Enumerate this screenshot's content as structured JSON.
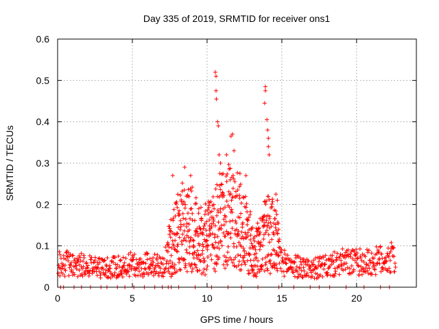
{
  "chart_data": {
    "type": "scatter",
    "title": "Day 335 of 2019, SRMTID for receiver ons1",
    "xlabel": "GPS time / hours",
    "ylabel": "SRMTID / TECUs",
    "xlim": [
      0,
      24
    ],
    "ylim": [
      0,
      0.6
    ],
    "xticks": [
      "0",
      "5",
      "10",
      "15",
      "20"
    ],
    "yticks": [
      "0",
      "0.1",
      "0.2",
      "0.3",
      "0.4",
      "0.5",
      "0.6"
    ],
    "grid": true,
    "marker": "plus",
    "series": [
      {
        "name": "SRMTID",
        "color": "#ff0000",
        "profile": [
          {
            "x": 0.0,
            "y": 0.055
          },
          {
            "x": 1.0,
            "y": 0.06
          },
          {
            "x": 2.0,
            "y": 0.05
          },
          {
            "x": 3.0,
            "y": 0.045
          },
          {
            "x": 4.0,
            "y": 0.05
          },
          {
            "x": 5.0,
            "y": 0.055
          },
          {
            "x": 6.0,
            "y": 0.055
          },
          {
            "x": 7.0,
            "y": 0.05
          },
          {
            "x": 7.5,
            "y": 0.09
          },
          {
            "x": 8.0,
            "y": 0.13
          },
          {
            "x": 8.5,
            "y": 0.15
          },
          {
            "x": 9.0,
            "y": 0.14
          },
          {
            "x": 9.5,
            "y": 0.11
          },
          {
            "x": 10.0,
            "y": 0.12
          },
          {
            "x": 10.5,
            "y": 0.13
          },
          {
            "x": 11.0,
            "y": 0.17
          },
          {
            "x": 11.5,
            "y": 0.18
          },
          {
            "x": 12.0,
            "y": 0.16
          },
          {
            "x": 12.5,
            "y": 0.13
          },
          {
            "x": 13.0,
            "y": 0.1
          },
          {
            "x": 13.5,
            "y": 0.09
          },
          {
            "x": 14.0,
            "y": 0.14
          },
          {
            "x": 14.5,
            "y": 0.12
          },
          {
            "x": 15.0,
            "y": 0.06
          },
          {
            "x": 16.0,
            "y": 0.05
          },
          {
            "x": 17.0,
            "y": 0.045
          },
          {
            "x": 18.0,
            "y": 0.05
          },
          {
            "x": 19.0,
            "y": 0.06
          },
          {
            "x": 20.0,
            "y": 0.06
          },
          {
            "x": 21.0,
            "y": 0.06
          },
          {
            "x": 22.0,
            "y": 0.07
          },
          {
            "x": 22.6,
            "y": 0.07
          }
        ],
        "peaks": [
          {
            "x": 7.7,
            "y": 0.27
          },
          {
            "x": 8.5,
            "y": 0.29
          },
          {
            "x": 8.9,
            "y": 0.27
          },
          {
            "x": 10.55,
            "y": 0.52
          },
          {
            "x": 10.6,
            "y": 0.51
          },
          {
            "x": 10.6,
            "y": 0.475
          },
          {
            "x": 10.62,
            "y": 0.455
          },
          {
            "x": 10.7,
            "y": 0.4
          },
          {
            "x": 10.75,
            "y": 0.39
          },
          {
            "x": 10.8,
            "y": 0.32
          },
          {
            "x": 10.9,
            "y": 0.3
          },
          {
            "x": 11.3,
            "y": 0.32
          },
          {
            "x": 11.6,
            "y": 0.365
          },
          {
            "x": 11.7,
            "y": 0.37
          },
          {
            "x": 11.8,
            "y": 0.33
          },
          {
            "x": 12.2,
            "y": 0.275
          },
          {
            "x": 12.6,
            "y": 0.27
          },
          {
            "x": 13.9,
            "y": 0.485
          },
          {
            "x": 13.9,
            "y": 0.475
          },
          {
            "x": 13.85,
            "y": 0.445
          },
          {
            "x": 14.0,
            "y": 0.405
          },
          {
            "x": 14.05,
            "y": 0.38
          },
          {
            "x": 14.1,
            "y": 0.36
          },
          {
            "x": 14.1,
            "y": 0.34
          },
          {
            "x": 14.15,
            "y": 0.32
          },
          {
            "x": 14.6,
            "y": 0.225
          },
          {
            "x": 14.7,
            "y": 0.21
          }
        ],
        "zeros": [
          0.2,
          0.4,
          1.1,
          1.6,
          2.2,
          2.9,
          3.3,
          4.0,
          4.5,
          5.1,
          5.8,
          6.5,
          7.0,
          7.4,
          7.6,
          8.1,
          9.2,
          10.3,
          11.4,
          12.3,
          13.4,
          14.8,
          15.8,
          16.9,
          17.5,
          18.2,
          19.3,
          20.5,
          21.6,
          22.2
        ]
      }
    ]
  }
}
